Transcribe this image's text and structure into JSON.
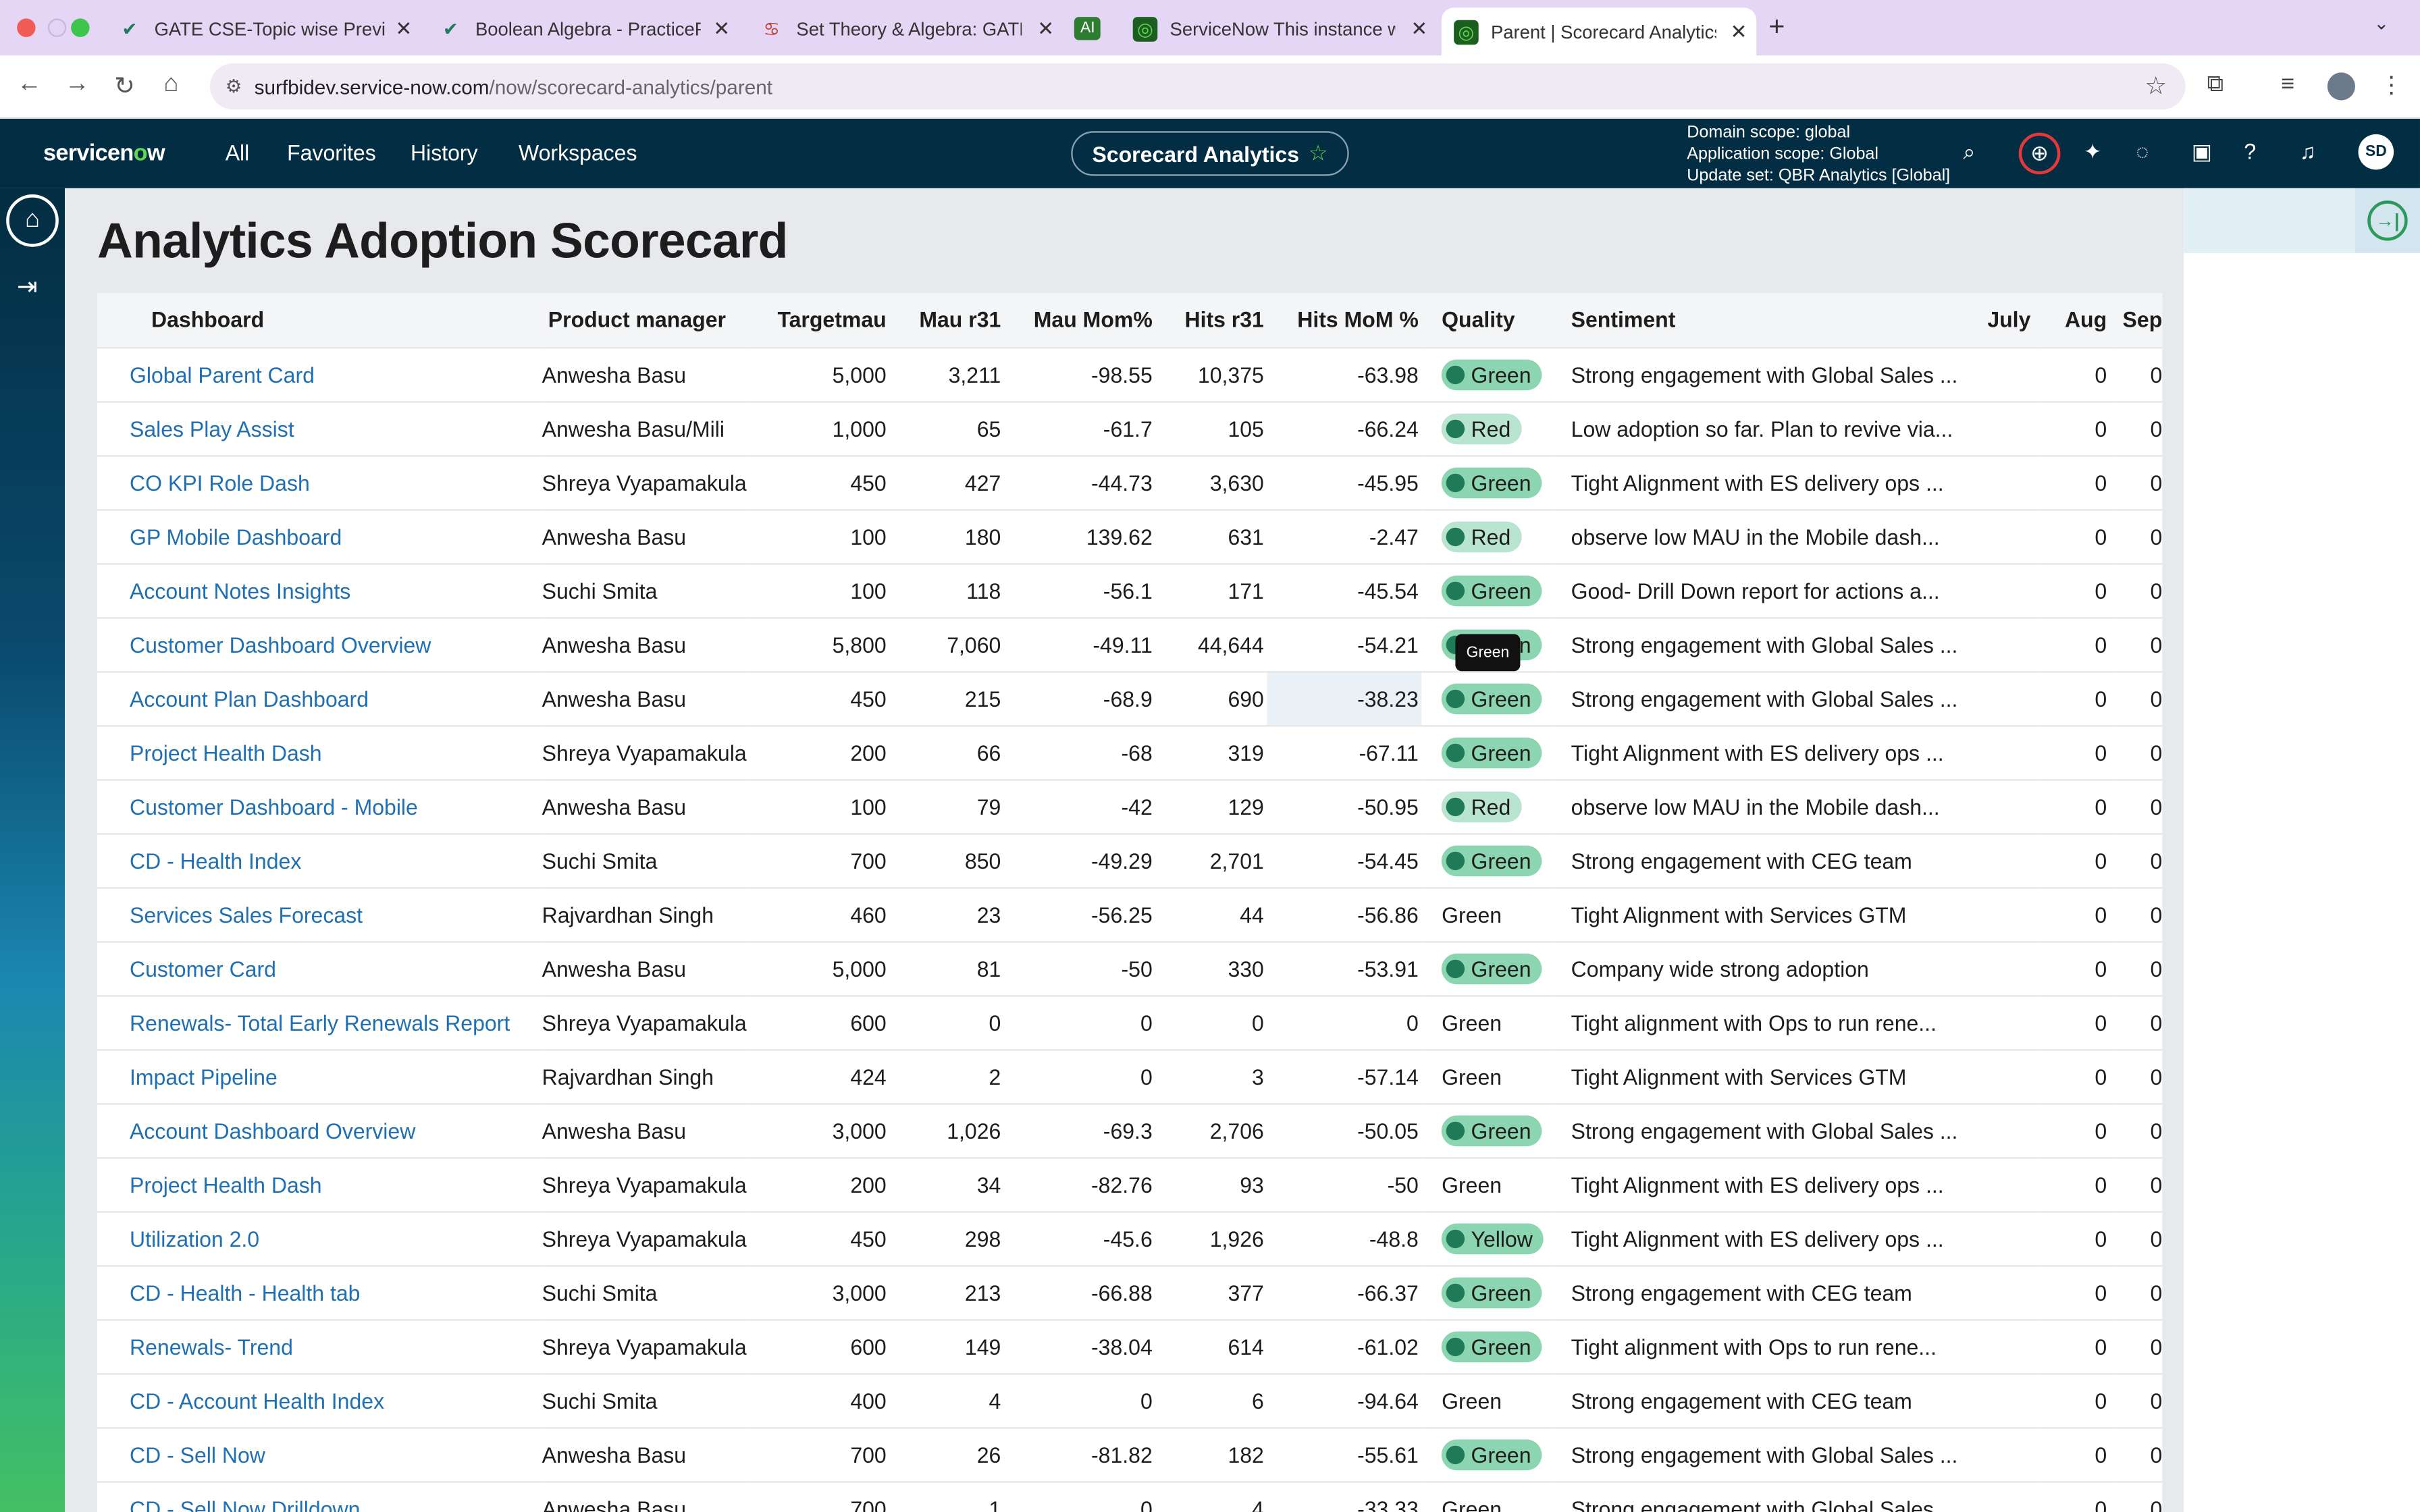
{
  "browser": {
    "tabs": [
      {
        "label": "GATE CSE-Topic wise Previou",
        "icon": "check-icon"
      },
      {
        "label": "Boolean Algebra - PracticePa",
        "icon": "check-icon"
      },
      {
        "label": "Set Theory & Algebra: GATE",
        "icon": "gate-overflow-icon"
      },
      {
        "label": "AI",
        "icon": "ai-icon"
      },
      {
        "label": "ServiceNow This instance wa",
        "icon": "servicenow-icon"
      },
      {
        "label": "Parent | Scorecard Analytics",
        "icon": "servicenow-icon"
      }
    ],
    "url_host": "surfbidev.service-now.com",
    "url_path": "/now/scorecard-analytics/parent"
  },
  "header": {
    "logo": "servicenow",
    "nav": [
      "All",
      "Favorites",
      "History",
      "Workspaces"
    ],
    "app_pill": "Scorecard Analytics",
    "scope": {
      "domain": "Domain scope: global",
      "application": "Application scope: Global",
      "update_set": "Update set: QBR Analytics [Global]"
    },
    "avatar": "SD"
  },
  "page": {
    "title": "Analytics Adoption Scorecard",
    "tooltip": "Green"
  },
  "table": {
    "columns": [
      "Dashboard",
      "Product manager",
      "Targetmau",
      "Mau r31",
      "Mau Mom%",
      "Hits r31",
      "Hits MoM %",
      "Quality",
      "Sentiment",
      "July",
      "Aug",
      "Sep"
    ],
    "rows": [
      {
        "dash": "Global Parent Card",
        "pm": "Anwesha Basu",
        "tm": "5,000",
        "mau": "3,211",
        "mom": "-98.55",
        "hits": "10,375",
        "hmom": "-63.98",
        "q": "Green",
        "qs": "green",
        "s": "Strong engagement with Global Sales ...",
        "jul": "",
        "aug": "0",
        "sep": "0"
      },
      {
        "dash": "Sales Play Assist",
        "pm": "Anwesha Basu/Mili",
        "tm": "1,000",
        "mau": "65",
        "mom": "-61.7",
        "hits": "105",
        "hmom": "-66.24",
        "q": "Red",
        "qs": "red",
        "s": "Low adoption so far. Plan to revive via...",
        "jul": "",
        "aug": "0",
        "sep": "0"
      },
      {
        "dash": "CO KPI Role Dash",
        "pm": "Shreya Vyapamakula",
        "tm": "450",
        "mau": "427",
        "mom": "-44.73",
        "hits": "3,630",
        "hmom": "-45.95",
        "q": "Green",
        "qs": "green",
        "s": "Tight Alignment with ES delivery ops ...",
        "jul": "",
        "aug": "0",
        "sep": "0"
      },
      {
        "dash": "GP Mobile Dashboard",
        "pm": "Anwesha Basu",
        "tm": "100",
        "mau": "180",
        "mom": "139.62",
        "hits": "631",
        "hmom": "-2.47",
        "q": "Red",
        "qs": "red",
        "s": "observe low MAU in the Mobile dash...",
        "jul": "",
        "aug": "0",
        "sep": "0"
      },
      {
        "dash": "Account Notes Insights",
        "pm": "Suchi Smita",
        "tm": "100",
        "mau": "118",
        "mom": "-56.1",
        "hits": "171",
        "hmom": "-45.54",
        "q": "Green",
        "qs": "green",
        "s": "Good- Drill Down report for actions a...",
        "jul": "",
        "aug": "0",
        "sep": "0"
      },
      {
        "dash": "Customer Dashboard Overview",
        "pm": "Anwesha Basu",
        "tm": "5,800",
        "mau": "7,060",
        "mom": "-49.11",
        "hits": "44,644",
        "hmom": "-54.21",
        "q": "Green",
        "qs": "green",
        "s": "Strong engagement with Global Sales ...",
        "jul": "",
        "aug": "0",
        "sep": "0"
      },
      {
        "dash": "Account Plan Dashboard",
        "pm": "Anwesha Basu",
        "tm": "450",
        "mau": "215",
        "mom": "-68.9",
        "hits": "690",
        "hmom": "-38.23",
        "q": "Green",
        "qs": "green",
        "s": "Strong engagement with Global Sales ...",
        "jul": "",
        "aug": "0",
        "sep": "0"
      },
      {
        "dash": "Project Health Dash",
        "pm": "Shreya Vyapamakula",
        "tm": "200",
        "mau": "66",
        "mom": "-68",
        "hits": "319",
        "hmom": "-67.11",
        "q": "Green",
        "qs": "green",
        "s": "Tight Alignment with ES delivery ops ...",
        "jul": "",
        "aug": "0",
        "sep": "0"
      },
      {
        "dash": "Customer Dashboard - Mobile",
        "pm": "Anwesha Basu",
        "tm": "100",
        "mau": "79",
        "mom": "-42",
        "hits": "129",
        "hmom": "-50.95",
        "q": "Red",
        "qs": "red",
        "s": "observe low MAU in the Mobile dash...",
        "jul": "",
        "aug": "0",
        "sep": "0"
      },
      {
        "dash": "CD - Health Index",
        "pm": "Suchi Smita",
        "tm": "700",
        "mau": "850",
        "mom": "-49.29",
        "hits": "2,701",
        "hmom": "-54.45",
        "q": "Green",
        "qs": "green",
        "s": "Strong engagement with CEG team",
        "jul": "",
        "aug": "0",
        "sep": "0"
      },
      {
        "dash": "Services Sales Forecast",
        "pm": "Rajvardhan Singh",
        "tm": "460",
        "mau": "23",
        "mom": "-56.25",
        "hits": "44",
        "hmom": "-56.86",
        "q": "Green",
        "qs": "plain",
        "s": "Tight Alignment with Services GTM",
        "jul": "",
        "aug": "0",
        "sep": "0"
      },
      {
        "dash": "Customer Card",
        "pm": "Anwesha Basu",
        "tm": "5,000",
        "mau": "81",
        "mom": "-50",
        "hits": "330",
        "hmom": "-53.91",
        "q": "Green",
        "qs": "green",
        "s": "Company wide strong adoption",
        "jul": "",
        "aug": "0",
        "sep": "0"
      },
      {
        "dash": "Renewals- Total Early Renewals Report",
        "pm": "Shreya Vyapamakula",
        "tm": "600",
        "mau": "0",
        "mom": "0",
        "hits": "0",
        "hmom": "0",
        "q": "Green",
        "qs": "plain",
        "s": "Tight alignment with Ops to run rene...",
        "jul": "",
        "aug": "0",
        "sep": "0"
      },
      {
        "dash": "Impact Pipeline",
        "pm": "Rajvardhan Singh",
        "tm": "424",
        "mau": "2",
        "mom": "0",
        "hits": "3",
        "hmom": "-57.14",
        "q": "Green",
        "qs": "plain",
        "s": "Tight Alignment with Services GTM",
        "jul": "",
        "aug": "0",
        "sep": "0"
      },
      {
        "dash": "Account Dashboard Overview",
        "pm": "Anwesha Basu",
        "tm": "3,000",
        "mau": "1,026",
        "mom": "-69.3",
        "hits": "2,706",
        "hmom": "-50.05",
        "q": "Green",
        "qs": "green",
        "s": "Strong engagement with Global Sales ...",
        "jul": "",
        "aug": "0",
        "sep": "0"
      },
      {
        "dash": "Project Health Dash",
        "pm": "Shreya Vyapamakula",
        "tm": "200",
        "mau": "34",
        "mom": "-82.76",
        "hits": "93",
        "hmom": "-50",
        "q": "Green",
        "qs": "plain",
        "s": "Tight Alignment with ES delivery ops ...",
        "jul": "",
        "aug": "0",
        "sep": "0"
      },
      {
        "dash": "Utilization 2.0",
        "pm": "Shreya Vyapamakula",
        "tm": "450",
        "mau": "298",
        "mom": "-45.6",
        "hits": "1,926",
        "hmom": "-48.8",
        "q": "Yellow",
        "qs": "yellow",
        "s": "Tight Alignment with ES delivery ops ...",
        "jul": "",
        "aug": "0",
        "sep": "0"
      },
      {
        "dash": "CD - Health - Health tab",
        "pm": "Suchi Smita",
        "tm": "3,000",
        "mau": "213",
        "mom": "-66.88",
        "hits": "377",
        "hmom": "-66.37",
        "q": "Green",
        "qs": "green",
        "s": "Strong engagement with CEG team",
        "jul": "",
        "aug": "0",
        "sep": "0"
      },
      {
        "dash": "Renewals- Trend",
        "pm": "Shreya Vyapamakula",
        "tm": "600",
        "mau": "149",
        "mom": "-38.04",
        "hits": "614",
        "hmom": "-61.02",
        "q": "Green",
        "qs": "green",
        "s": "Tight alignment with Ops to run rene...",
        "jul": "",
        "aug": "0",
        "sep": "0"
      },
      {
        "dash": "CD - Account Health Index",
        "pm": "Suchi Smita",
        "tm": "400",
        "mau": "4",
        "mom": "0",
        "hits": "6",
        "hmom": "-94.64",
        "q": "Green",
        "qs": "plain",
        "s": "Strong engagement with CEG team",
        "jul": "",
        "aug": "0",
        "sep": "0"
      },
      {
        "dash": "CD - Sell Now",
        "pm": "Anwesha Basu",
        "tm": "700",
        "mau": "26",
        "mom": "-81.82",
        "hits": "182",
        "hmom": "-55.61",
        "q": "Green",
        "qs": "green",
        "s": "Strong engagement with Global Sales ...",
        "jul": "",
        "aug": "0",
        "sep": "0"
      },
      {
        "dash": "CD - Sell Now Drilldown",
        "pm": "Anwesha Basu",
        "tm": "700",
        "mau": "1",
        "mom": "0",
        "hits": "4",
        "hmom": "-33.33",
        "q": "Green",
        "qs": "plain",
        "s": "Strong engagement with Global Sales ...",
        "jul": "",
        "aug": "0",
        "sep": "0"
      }
    ]
  },
  "colors": {
    "header_bg": "#032d42",
    "link": "#1f6fb5",
    "badge_green": "#8bd5b0",
    "badge_dot": "#1f7a57",
    "accent_green": "#62d84e"
  }
}
